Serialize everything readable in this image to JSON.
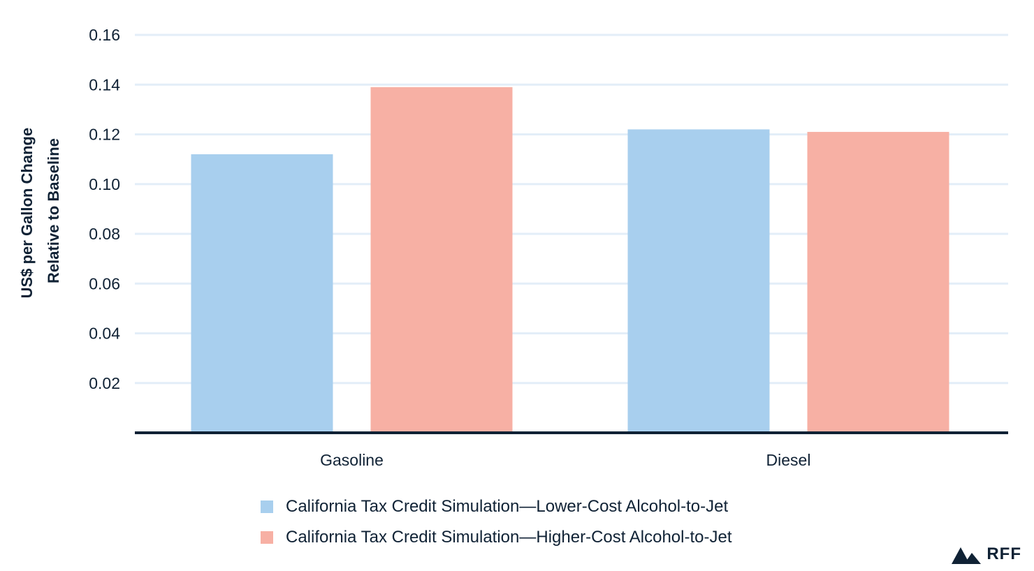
{
  "chart_data": {
    "type": "bar",
    "title": "",
    "xlabel": "",
    "ylabel": "US$ per Gallon Change Relative to Baseline",
    "ylabel_lines": [
      "US$ per Gallon Change",
      "Relative to Baseline"
    ],
    "ylim": [
      0,
      0.16
    ],
    "yticks": [
      "0.02",
      "0.04",
      "0.06",
      "0.08",
      "0.10",
      "0.12",
      "0.14",
      "0.16"
    ],
    "categories": [
      "Gasoline",
      "Diesel"
    ],
    "series": [
      {
        "name": "California Tax Credit Simulation—Lower-Cost Alcohol-to-Jet",
        "color": "#a8cfee",
        "values": [
          0.112,
          0.122
        ]
      },
      {
        "name": "California Tax Credit Simulation—Higher-Cost Alcohol-to-Jet",
        "color": "#f7b0a4",
        "values": [
          0.139,
          0.121
        ]
      }
    ],
    "grid": true,
    "legend_position": "bottom"
  },
  "brand": {
    "name": "RFF",
    "icon": "mountain-icon",
    "color": "#102235"
  },
  "colors": {
    "text": "#102235",
    "grid": "#e3eef8",
    "axis": "#102235"
  }
}
